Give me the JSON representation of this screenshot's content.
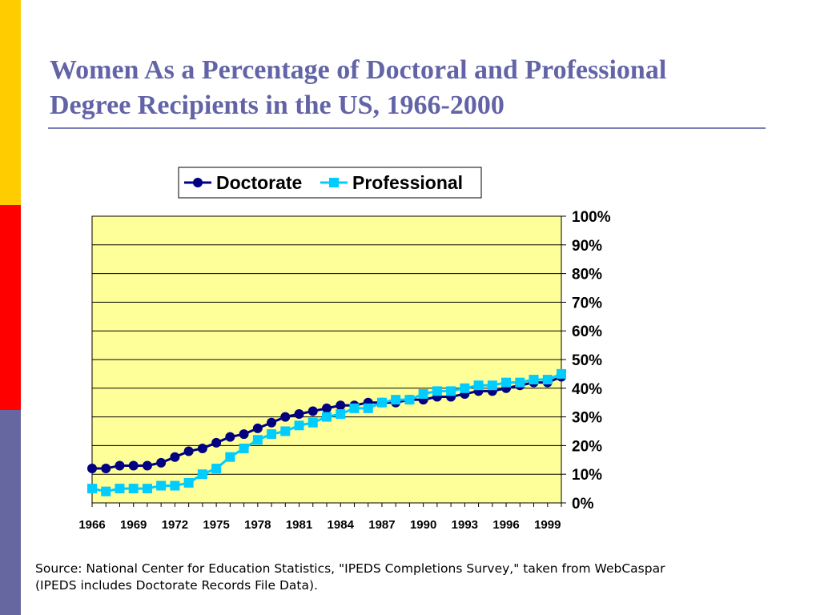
{
  "slide": {
    "title_line1": "Women As a Percentage of Doctoral and Professional",
    "title_line2": "Degree Recipients in the US, 1966-2000",
    "source": "Source: National Center for Education Statistics, \"IPEDS Completions Survey,\"  taken from WebCaspar (IPEDS includes Doctorate Records File Data).",
    "accent_colors": [
      "#ffcc00",
      "#ff0000",
      "#6666a0"
    ],
    "title_color": "#6264a7"
  },
  "chart_data": {
    "type": "line",
    "title": "",
    "xlabel": "",
    "ylabel": "",
    "x": [
      1966,
      1967,
      1968,
      1969,
      1970,
      1971,
      1972,
      1973,
      1974,
      1975,
      1976,
      1977,
      1978,
      1979,
      1980,
      1981,
      1982,
      1983,
      1984,
      1985,
      1986,
      1987,
      1988,
      1989,
      1990,
      1991,
      1992,
      1993,
      1994,
      1995,
      1996,
      1997,
      1998,
      1999,
      2000
    ],
    "x_tick_labels": [
      "1966",
      "1969",
      "1972",
      "1975",
      "1978",
      "1981",
      "1984",
      "1987",
      "1990",
      "1993",
      "1996",
      "1999"
    ],
    "y_tick_labels": [
      "0%",
      "10%",
      "20%",
      "30%",
      "40%",
      "50%",
      "60%",
      "70%",
      "80%",
      "90%",
      "100%"
    ],
    "ylim": [
      0,
      100
    ],
    "y_axis_side": "right",
    "grid": "horizontal",
    "plot_background": "#ffff99",
    "legend_position": "top-center",
    "series": [
      {
        "name": "Doctorate",
        "color": "#000080",
        "marker": "circle",
        "values": [
          12,
          12,
          13,
          13,
          13,
          14,
          16,
          18,
          19,
          21,
          23,
          24,
          26,
          28,
          30,
          31,
          32,
          33,
          34,
          34,
          35,
          35,
          35,
          36,
          36,
          37,
          37,
          38,
          39,
          39,
          40,
          41,
          42,
          42,
          44
        ]
      },
      {
        "name": "Professional",
        "color": "#00ccff",
        "marker": "square",
        "values": [
          5,
          4,
          5,
          5,
          5,
          6,
          6,
          7,
          10,
          12,
          16,
          19,
          22,
          24,
          25,
          27,
          28,
          30,
          31,
          33,
          33,
          35,
          36,
          36,
          38,
          39,
          39,
          40,
          41,
          41,
          42,
          42,
          43,
          43,
          45
        ]
      }
    ]
  }
}
